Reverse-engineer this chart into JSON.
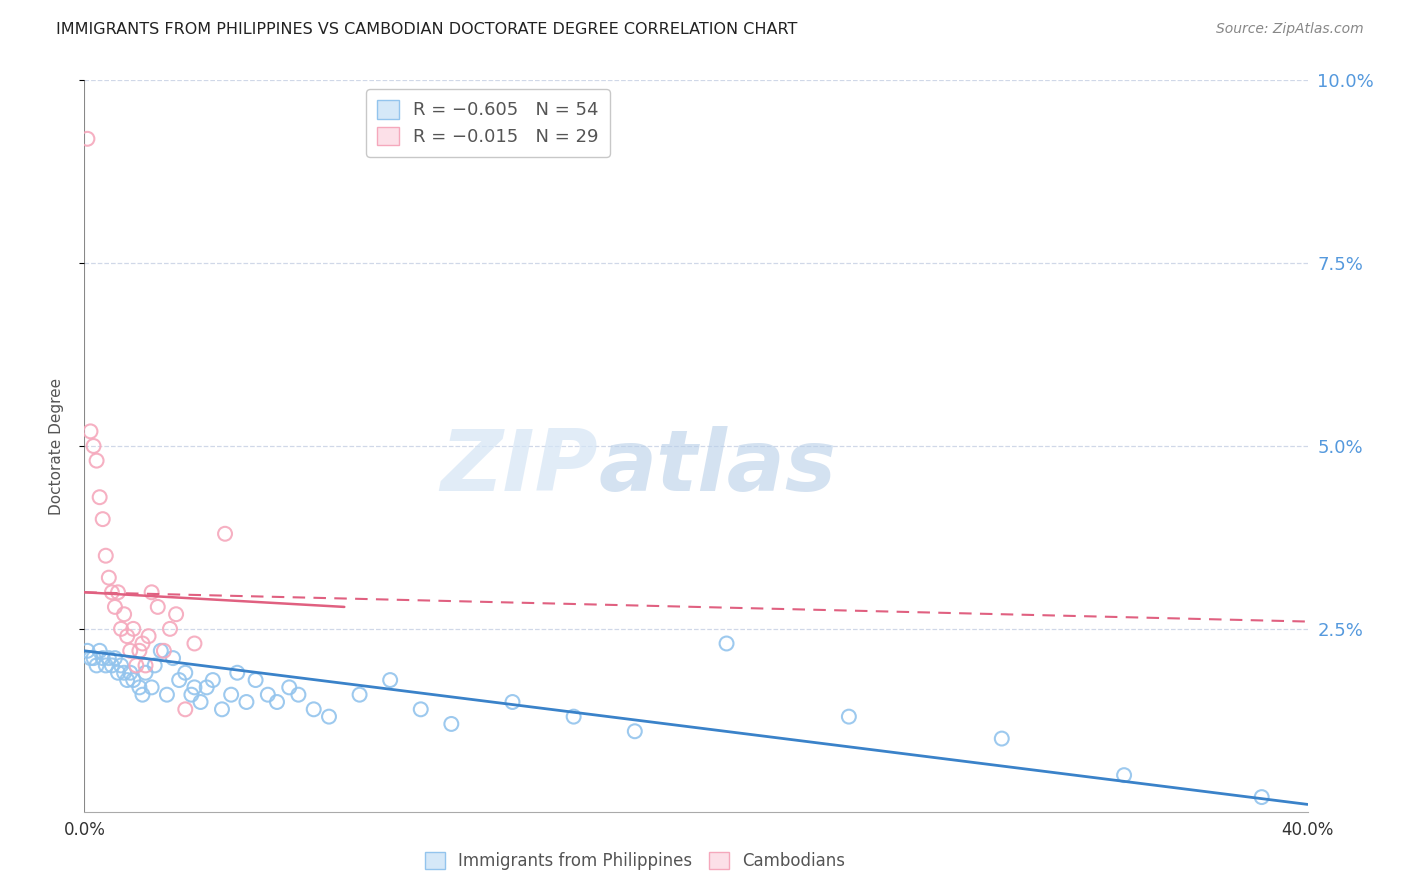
{
  "title": "IMMIGRANTS FROM PHILIPPINES VS CAMBODIAN DOCTORATE DEGREE CORRELATION CHART",
  "source": "Source: ZipAtlas.com",
  "ylabel": "Doctorate Degree",
  "xlim": [
    0.0,
    0.4
  ],
  "ylim": [
    0.0,
    0.1
  ],
  "legend_entry1_r": "R = −0.605",
  "legend_entry1_n": "N = 54",
  "legend_entry2_r": "R = −0.015",
  "legend_entry2_n": "N = 29",
  "color_blue": "#93C4ED",
  "color_pink": "#F5A8BC",
  "color_blue_line": "#3A82C9",
  "color_pink_line": "#E06080",
  "color_right_axis": "#5599DD",
  "watermark_zip": "ZIP",
  "watermark_atlas": "atlas",
  "blue_x": [
    0.001,
    0.002,
    0.003,
    0.004,
    0.005,
    0.006,
    0.007,
    0.008,
    0.009,
    0.01,
    0.011,
    0.012,
    0.013,
    0.014,
    0.015,
    0.016,
    0.018,
    0.019,
    0.02,
    0.022,
    0.023,
    0.025,
    0.027,
    0.029,
    0.031,
    0.033,
    0.035,
    0.036,
    0.038,
    0.04,
    0.042,
    0.045,
    0.048,
    0.05,
    0.053,
    0.056,
    0.06,
    0.063,
    0.067,
    0.07,
    0.075,
    0.08,
    0.09,
    0.1,
    0.11,
    0.12,
    0.14,
    0.16,
    0.18,
    0.21,
    0.25,
    0.3,
    0.34,
    0.385
  ],
  "blue_y": [
    0.022,
    0.021,
    0.021,
    0.02,
    0.022,
    0.021,
    0.02,
    0.021,
    0.02,
    0.021,
    0.019,
    0.02,
    0.019,
    0.018,
    0.019,
    0.018,
    0.017,
    0.016,
    0.019,
    0.017,
    0.02,
    0.022,
    0.016,
    0.021,
    0.018,
    0.019,
    0.016,
    0.017,
    0.015,
    0.017,
    0.018,
    0.014,
    0.016,
    0.019,
    0.015,
    0.018,
    0.016,
    0.015,
    0.017,
    0.016,
    0.014,
    0.013,
    0.016,
    0.018,
    0.014,
    0.012,
    0.015,
    0.013,
    0.011,
    0.023,
    0.013,
    0.01,
    0.005,
    0.002
  ],
  "pink_x": [
    0.001,
    0.002,
    0.003,
    0.004,
    0.005,
    0.006,
    0.007,
    0.008,
    0.009,
    0.01,
    0.011,
    0.012,
    0.013,
    0.014,
    0.015,
    0.016,
    0.017,
    0.018,
    0.019,
    0.02,
    0.021,
    0.022,
    0.024,
    0.026,
    0.028,
    0.03,
    0.033,
    0.036,
    0.046
  ],
  "pink_y": [
    0.092,
    0.052,
    0.05,
    0.048,
    0.043,
    0.04,
    0.035,
    0.032,
    0.03,
    0.028,
    0.03,
    0.025,
    0.027,
    0.024,
    0.022,
    0.025,
    0.02,
    0.022,
    0.023,
    0.02,
    0.024,
    0.03,
    0.028,
    0.022,
    0.025,
    0.027,
    0.014,
    0.023,
    0.038
  ],
  "pink_line_x": [
    0.0,
    0.4
  ],
  "pink_line_y_start": 0.03,
  "pink_line_y_end": 0.026,
  "blue_line_x": [
    0.0,
    0.4
  ],
  "blue_line_y_start": 0.022,
  "blue_line_y_end": 0.001
}
